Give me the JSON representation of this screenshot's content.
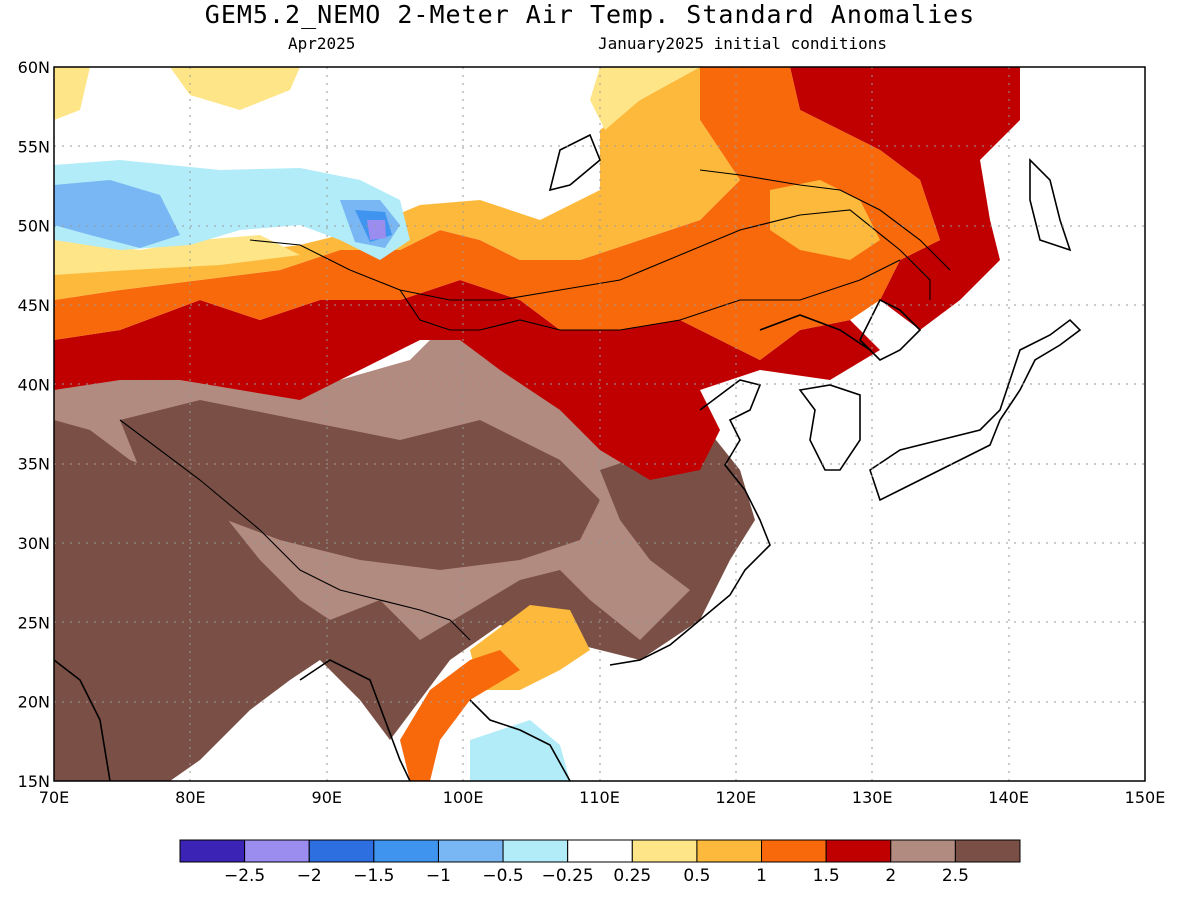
{
  "title": "GEM5.2_NEMO 2-Meter Air Temp. Standard Anomalies",
  "valid_month": "Apr2025",
  "init_conditions": "January2025 initial conditions",
  "map": {
    "lon_range": [
      70,
      150
    ],
    "lat_range": [
      15,
      60
    ],
    "lat_labels": [
      "15N",
      "20N",
      "25N",
      "30N",
      "35N",
      "40N",
      "45N",
      "50N",
      "55N",
      "60N"
    ],
    "lon_labels": [
      "70E",
      "80E",
      "90E",
      "100E",
      "110E",
      "120E",
      "130E",
      "140E",
      "150E"
    ],
    "grid_lines": "dotted"
  },
  "colorbar": {
    "colors": [
      "#3a23b5",
      "#9b8cf0",
      "#2d6ee0",
      "#3f94f0",
      "#78b6f4",
      "#b1ecf8",
      "#ffffff",
      "#fee587",
      "#fcb93c",
      "#f8690c",
      "#c00000",
      "#b28b80",
      "#7a5046"
    ],
    "labels": [
      "−2.5",
      "−2",
      "−1.5",
      "−1",
      "−0.5",
      "−0.25",
      "0.25",
      "0.5",
      "1",
      "1.5",
      "2",
      "2.5"
    ]
  }
}
